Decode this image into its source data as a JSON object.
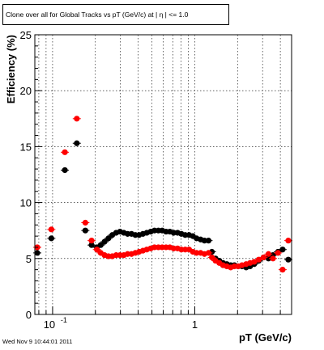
{
  "title": "Clone  over all for Global Tracks vs pT (GeV/c) at |  η | <= 1.0",
  "footer_timestamp": "Wed Nov  9 10:44:01 2011",
  "colors": {
    "series_black": "#000000",
    "series_red": "#ff0000",
    "grid": "#000000"
  },
  "chart_data": {
    "type": "scatter",
    "title": "Clone  over all for Global Tracks vs pT (GeV/c) at |  η | <= 1.0",
    "xlabel": "pT (GeV/c)",
    "ylabel": "Efficiency (%)",
    "xscale": "log",
    "xlim": [
      0.075,
      4.8
    ],
    "ylim": [
      0,
      25
    ],
    "grid": true,
    "xticks_major": [
      {
        "value": 0.1,
        "label": "10",
        "exponent": "-1"
      },
      {
        "value": 1,
        "label": "1",
        "exponent": ""
      }
    ],
    "yticks": [
      {
        "value": 0,
        "label": "0"
      },
      {
        "value": 5,
        "label": "5"
      },
      {
        "value": 10,
        "label": "10"
      },
      {
        "value": 15,
        "label": "15"
      },
      {
        "value": 20,
        "label": "20"
      },
      {
        "value": 25,
        "label": "25"
      }
    ],
    "series": [
      {
        "color": "#000000",
        "points": [
          {
            "x": 0.078,
            "y": 5.5
          },
          {
            "x": 0.098,
            "y": 6.8
          },
          {
            "x": 0.122,
            "y": 12.9
          },
          {
            "x": 0.148,
            "y": 15.3
          },
          {
            "x": 0.17,
            "y": 7.5
          },
          {
            "x": 0.188,
            "y": 6.2
          },
          {
            "x": 0.205,
            "y": 6.0
          },
          {
            "x": 0.218,
            "y": 6.2
          },
          {
            "x": 0.232,
            "y": 6.5
          },
          {
            "x": 0.247,
            "y": 6.8
          },
          {
            "x": 0.263,
            "y": 7.1
          },
          {
            "x": 0.28,
            "y": 7.3
          },
          {
            "x": 0.298,
            "y": 7.4
          },
          {
            "x": 0.317,
            "y": 7.3
          },
          {
            "x": 0.337,
            "y": 7.2
          },
          {
            "x": 0.359,
            "y": 7.2
          },
          {
            "x": 0.382,
            "y": 7.1
          },
          {
            "x": 0.406,
            "y": 7.1
          },
          {
            "x": 0.432,
            "y": 7.2
          },
          {
            "x": 0.46,
            "y": 7.3
          },
          {
            "x": 0.49,
            "y": 7.4
          },
          {
            "x": 0.521,
            "y": 7.5
          },
          {
            "x": 0.555,
            "y": 7.5
          },
          {
            "x": 0.59,
            "y": 7.5
          },
          {
            "x": 0.628,
            "y": 7.4
          },
          {
            "x": 0.668,
            "y": 7.4
          },
          {
            "x": 0.711,
            "y": 7.3
          },
          {
            "x": 0.757,
            "y": 7.3
          },
          {
            "x": 0.805,
            "y": 7.2
          },
          {
            "x": 0.857,
            "y": 7.1
          },
          {
            "x": 0.912,
            "y": 7.1
          },
          {
            "x": 0.97,
            "y": 7.0
          },
          {
            "x": 1.03,
            "y": 6.8
          },
          {
            "x": 1.1,
            "y": 6.7
          },
          {
            "x": 1.17,
            "y": 6.6
          },
          {
            "x": 1.25,
            "y": 6.6
          },
          {
            "x": 1.32,
            "y": 5.6
          },
          {
            "x": 1.4,
            "y": 5.0
          },
          {
            "x": 1.49,
            "y": 4.8
          },
          {
            "x": 1.58,
            "y": 4.6
          },
          {
            "x": 1.68,
            "y": 4.5
          },
          {
            "x": 1.79,
            "y": 4.4
          },
          {
            "x": 1.9,
            "y": 4.4
          },
          {
            "x": 2.02,
            "y": 4.3
          },
          {
            "x": 2.15,
            "y": 4.3
          },
          {
            "x": 2.3,
            "y": 4.2
          },
          {
            "x": 2.45,
            "y": 4.3
          },
          {
            "x": 2.62,
            "y": 4.5
          },
          {
            "x": 2.82,
            "y": 4.8
          },
          {
            "x": 3.05,
            "y": 5.1
          },
          {
            "x": 3.3,
            "y": 5.0
          },
          {
            "x": 3.55,
            "y": 5.3
          },
          {
            "x": 3.85,
            "y": 5.6
          },
          {
            "x": 4.15,
            "y": 5.8
          },
          {
            "x": 4.55,
            "y": 4.9
          }
        ]
      },
      {
        "color": "#ff0000",
        "points": [
          {
            "x": 0.078,
            "y": 6.0
          },
          {
            "x": 0.098,
            "y": 7.6
          },
          {
            "x": 0.122,
            "y": 14.5
          },
          {
            "x": 0.148,
            "y": 17.5
          },
          {
            "x": 0.17,
            "y": 8.2
          },
          {
            "x": 0.188,
            "y": 6.6
          },
          {
            "x": 0.205,
            "y": 5.8
          },
          {
            "x": 0.218,
            "y": 5.5
          },
          {
            "x": 0.232,
            "y": 5.3
          },
          {
            "x": 0.247,
            "y": 5.2
          },
          {
            "x": 0.263,
            "y": 5.2
          },
          {
            "x": 0.28,
            "y": 5.3
          },
          {
            "x": 0.298,
            "y": 5.3
          },
          {
            "x": 0.317,
            "y": 5.3
          },
          {
            "x": 0.337,
            "y": 5.4
          },
          {
            "x": 0.359,
            "y": 5.4
          },
          {
            "x": 0.382,
            "y": 5.5
          },
          {
            "x": 0.406,
            "y": 5.6
          },
          {
            "x": 0.432,
            "y": 5.7
          },
          {
            "x": 0.46,
            "y": 5.8
          },
          {
            "x": 0.49,
            "y": 5.9
          },
          {
            "x": 0.521,
            "y": 6.0
          },
          {
            "x": 0.555,
            "y": 6.0
          },
          {
            "x": 0.59,
            "y": 6.0
          },
          {
            "x": 0.628,
            "y": 6.0
          },
          {
            "x": 0.668,
            "y": 6.0
          },
          {
            "x": 0.711,
            "y": 5.9
          },
          {
            "x": 0.757,
            "y": 5.9
          },
          {
            "x": 0.805,
            "y": 5.8
          },
          {
            "x": 0.857,
            "y": 5.8
          },
          {
            "x": 0.912,
            "y": 5.8
          },
          {
            "x": 0.97,
            "y": 5.6
          },
          {
            "x": 1.03,
            "y": 5.5
          },
          {
            "x": 1.1,
            "y": 5.5
          },
          {
            "x": 1.17,
            "y": 5.4
          },
          {
            "x": 1.25,
            "y": 5.5
          },
          {
            "x": 1.32,
            "y": 5.1
          },
          {
            "x": 1.4,
            "y": 4.8
          },
          {
            "x": 1.49,
            "y": 4.6
          },
          {
            "x": 1.58,
            "y": 4.4
          },
          {
            "x": 1.68,
            "y": 4.3
          },
          {
            "x": 1.79,
            "y": 4.2
          },
          {
            "x": 1.9,
            "y": 4.3
          },
          {
            "x": 2.02,
            "y": 4.3
          },
          {
            "x": 2.15,
            "y": 4.4
          },
          {
            "x": 2.3,
            "y": 4.5
          },
          {
            "x": 2.45,
            "y": 4.6
          },
          {
            "x": 2.62,
            "y": 4.7
          },
          {
            "x": 2.82,
            "y": 4.9
          },
          {
            "x": 3.05,
            "y": 5.1
          },
          {
            "x": 3.3,
            "y": 5.4
          },
          {
            "x": 3.55,
            "y": 5.0
          },
          {
            "x": 3.85,
            "y": 5.5
          },
          {
            "x": 4.15,
            "y": 4.0
          },
          {
            "x": 4.55,
            "y": 6.6
          }
        ]
      }
    ]
  }
}
